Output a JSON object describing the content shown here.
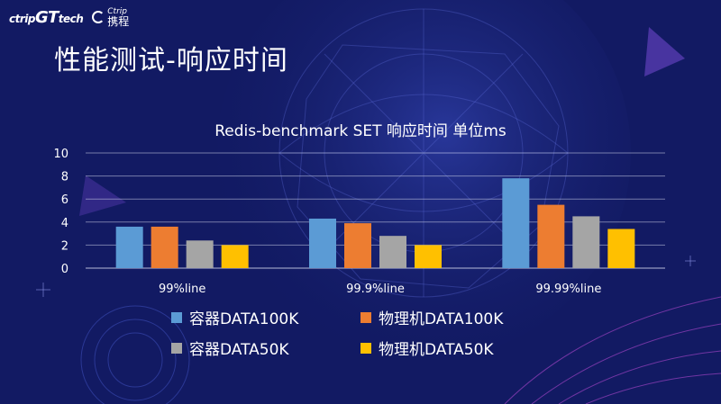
{
  "header": {
    "logo_ctrip_tech_prefix": "ctrip",
    "logo_ctrip_tech_mark": "GT",
    "logo_ctrip_tech_suffix": "tech",
    "logo_ctrip_en": "Ctrip",
    "logo_ctrip_cn": "携程"
  },
  "slide": {
    "title": "性能测试-响应时间"
  },
  "colors": {
    "background": "#121a63",
    "blue": "#5b9bd5",
    "orange": "#ed7d31",
    "gray": "#a5a5a5",
    "yellow": "#ffc000"
  },
  "chart_data": {
    "type": "bar",
    "title": "Redis-benchmark  SET  响应时间 单位ms",
    "categories": [
      "99%line",
      "99.9%line",
      "99.99%line"
    ],
    "ylim": [
      0,
      10
    ],
    "yticks": [
      "0",
      "2",
      "4",
      "6",
      "8",
      "10"
    ],
    "grid": true,
    "legend_position": "bottom",
    "series": [
      {
        "name": "容器DATA100K",
        "color": "#5b9bd5",
        "values": [
          3.6,
          4.3,
          7.8
        ]
      },
      {
        "name": "物理机DATA100K",
        "color": "#ed7d31",
        "values": [
          3.6,
          3.9,
          5.5
        ]
      },
      {
        "name": "容器DATA50K",
        "color": "#a5a5a5",
        "values": [
          2.4,
          2.8,
          4.5
        ]
      },
      {
        "name": "物理机DATA50K",
        "color": "#ffc000",
        "values": [
          2.0,
          2.0,
          3.4
        ]
      }
    ]
  }
}
